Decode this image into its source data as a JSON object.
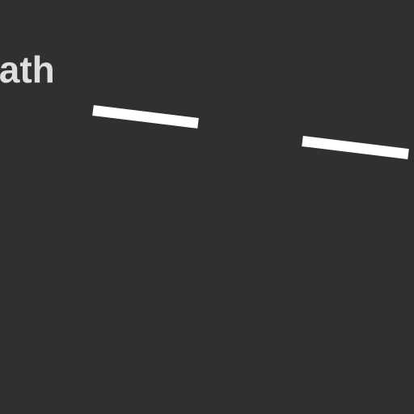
{
  "screen": {
    "title": "iath",
    "background_color": "#303030",
    "title_color": "#dedede",
    "mark_color": "#ffffff"
  }
}
